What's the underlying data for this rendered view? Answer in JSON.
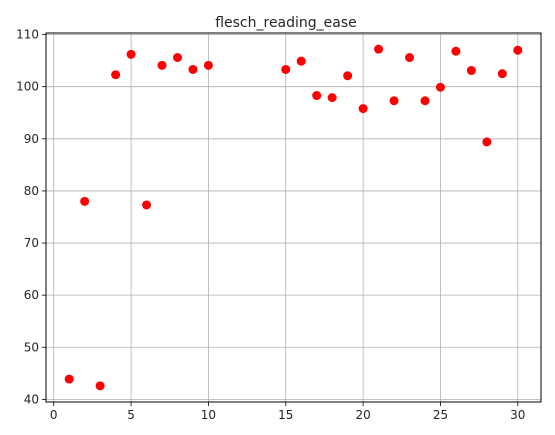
{
  "chart_data": {
    "type": "scatter",
    "title": "flesch_reading_ease",
    "xlabel": "",
    "ylabel": "",
    "xlim": [
      -0.5,
      31.5
    ],
    "ylim": [
      39.5,
      110.3
    ],
    "xticks": [
      0,
      5,
      10,
      15,
      20,
      25,
      30
    ],
    "yticks": [
      40,
      50,
      60,
      70,
      80,
      90,
      100,
      110
    ],
    "grid": true,
    "marker_color": "#ff0000",
    "series": [
      {
        "x": [
          1,
          2,
          3,
          4,
          5,
          6,
          7,
          8,
          9,
          10,
          15,
          16,
          17,
          18,
          19,
          20,
          21,
          22,
          23,
          24,
          25,
          26,
          27,
          28,
          29,
          30
        ],
        "values": [
          43.9,
          78.0,
          42.6,
          102.3,
          106.2,
          77.3,
          104.1,
          105.6,
          103.3,
          104.1,
          103.3,
          104.9,
          98.3,
          97.9,
          102.1,
          95.8,
          107.2,
          97.3,
          105.6,
          97.3,
          99.9,
          106.8,
          103.1,
          89.4,
          102.5,
          107.0
        ]
      }
    ]
  }
}
